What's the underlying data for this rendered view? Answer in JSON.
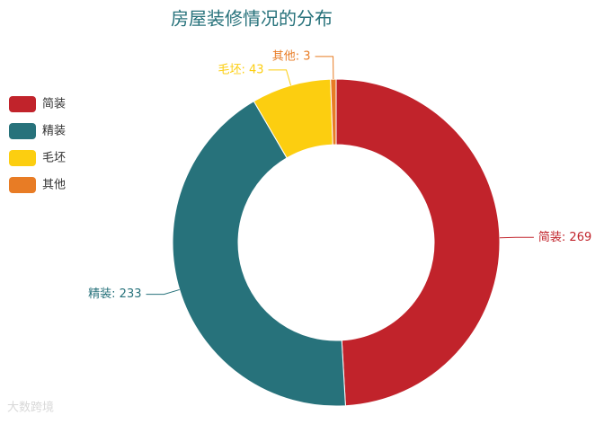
{
  "chart_data": {
    "type": "donut",
    "title": "房屋装修情况的分布",
    "categories": [
      "简装",
      "精装",
      "毛坯",
      "其他"
    ],
    "values": [
      269,
      233,
      43,
      3
    ],
    "value_labels": [
      "简装: 269",
      "精装: 233",
      "毛坯: 43",
      "其他: 3"
    ],
    "colors": [
      "#c1232b",
      "#27727b",
      "#fcce10",
      "#e87c25"
    ],
    "legend": "left"
  },
  "watermark": "大数跨境"
}
